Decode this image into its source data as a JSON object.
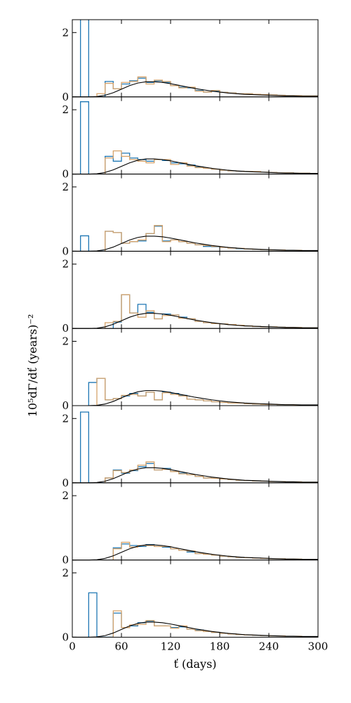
{
  "figure": {
    "ylabel": "10⁵dΓ/dť (years)⁻²",
    "xlabel": "ť (days)",
    "colors": {
      "series_a": "#1f77b4",
      "series_b": "#d6a36b",
      "model": "#000000"
    }
  },
  "chart_data": {
    "type": "line",
    "xlim": [
      0,
      300
    ],
    "ylim": [
      0,
      2.4
    ],
    "xticks": [
      0,
      60,
      120,
      180,
      240,
      300
    ],
    "yticks": [
      0,
      2
    ],
    "grid": false,
    "bin_edges": [
      10,
      20,
      30,
      40,
      50,
      60,
      70,
      80,
      90,
      100,
      110,
      120,
      130,
      140,
      150,
      160,
      170,
      180,
      190,
      200,
      210,
      220,
      230,
      240,
      250,
      260,
      270,
      280,
      290,
      300
    ],
    "model_curve": {
      "x": [
        0,
        10,
        20,
        30,
        40,
        50,
        60,
        70,
        80,
        90,
        100,
        110,
        120,
        130,
        140,
        150,
        160,
        170,
        180,
        190,
        200,
        210,
        220,
        230,
        240,
        250,
        260,
        270,
        280,
        290,
        300
      ],
      "y": [
        0.0,
        0.0,
        0.0,
        0.01,
        0.05,
        0.13,
        0.24,
        0.35,
        0.43,
        0.47,
        0.47,
        0.45,
        0.41,
        0.36,
        0.31,
        0.26,
        0.22,
        0.18,
        0.15,
        0.12,
        0.1,
        0.08,
        0.07,
        0.06,
        0.05,
        0.04,
        0.03,
        0.03,
        0.02,
        0.02,
        0.02
      ]
    },
    "panels": [
      {
        "series": [
          {
            "values": [
              2.5,
              0,
              0,
              0.48,
              0.25,
              0.4,
              0.5,
              0.58,
              0.45,
              0.5,
              0.45,
              0.35,
              0.3,
              0.28,
              0.2,
              0.15,
              0.18,
              0.14,
              0.12,
              0.1,
              0.1,
              0.08,
              0.07,
              0.06,
              0.05,
              0.04,
              0.04,
              0.03,
              0.03
            ]
          },
          {
            "values": [
              0,
              0,
              0.1,
              0.42,
              0.25,
              0.45,
              0.48,
              0.62,
              0.4,
              0.52,
              0.48,
              0.35,
              0.28,
              0.3,
              0.18,
              0.15,
              0.2,
              0.14,
              0.12,
              0.1,
              0.1,
              0.08,
              0.07,
              0.06,
              0.05,
              0.04,
              0.04,
              0.03,
              0.03
            ]
          }
        ]
      },
      {
        "series": [
          {
            "values": [
              2.25,
              0,
              0,
              0.55,
              0.4,
              0.65,
              0.5,
              0.45,
              0.4,
              0.45,
              0.42,
              0.35,
              0.32,
              0.28,
              0.22,
              0.18,
              0.15,
              0.12,
              0.1,
              0.09,
              0.08,
              0.07,
              0.06,
              0.05,
              0.04,
              0.04,
              0.03,
              0.03,
              0.02
            ]
          },
          {
            "values": [
              0,
              0,
              0,
              0.5,
              0.72,
              0.55,
              0.45,
              0.4,
              0.35,
              0.45,
              0.45,
              0.3,
              0.35,
              0.25,
              0.2,
              0.18,
              0.15,
              0.12,
              0.1,
              0.09,
              0.08,
              0.08,
              0.06,
              0.05,
              0.04,
              0.04,
              0.03,
              0.03,
              0.02
            ]
          }
        ]
      },
      {
        "series": [
          {
            "values": [
              0.48,
              0,
              0,
              0.62,
              0.58,
              0.25,
              0.3,
              0.32,
              0.55,
              0.78,
              0.32,
              0.35,
              0.3,
              0.25,
              0.2,
              0.15,
              0.14,
              0.12,
              0.1,
              0.08,
              0.07,
              0.06,
              0.05,
              0.04,
              0.04,
              0.03,
              0.03,
              0.02,
              0.02
            ]
          },
          {
            "values": [
              0,
              0,
              0,
              0.62,
              0.58,
              0.25,
              0.3,
              0.35,
              0.55,
              0.8,
              0.3,
              0.35,
              0.3,
              0.25,
              0.2,
              0.18,
              0.15,
              0.12,
              0.1,
              0.09,
              0.07,
              0.06,
              0.05,
              0.04,
              0.04,
              0.03,
              0.03,
              0.02,
              0.02
            ]
          }
        ]
      },
      {
        "series": [
          {
            "values": [
              0,
              0,
              0,
              0,
              0.2,
              1.05,
              0.48,
              0.75,
              0.5,
              0.3,
              0.45,
              0.42,
              0.35,
              0.3,
              0.22,
              0.18,
              0.15,
              0.14,
              0.12,
              0.1,
              0.08,
              0.06,
              0.05,
              0.05,
              0.04,
              0.03,
              0.03,
              0.02,
              0.02
            ]
          },
          {
            "values": [
              0,
              0,
              0,
              0.18,
              0.22,
              1.05,
              0.48,
              0.35,
              0.55,
              0.3,
              0.4,
              0.42,
              0.32,
              0.3,
              0.22,
              0.18,
              0.15,
              0.14,
              0.12,
              0.1,
              0.08,
              0.06,
              0.05,
              0.05,
              0.04,
              0.03,
              0.03,
              0.02,
              0.02
            ]
          }
        ]
      },
      {
        "series": [
          {
            "values": [
              0,
              0.72,
              0.85,
              0.18,
              0.22,
              0.3,
              0.38,
              0.3,
              0.42,
              0.18,
              0.42,
              0.38,
              0.32,
              0.2,
              0.18,
              0.15,
              0.12,
              0.1,
              0.08,
              0.08,
              0.06,
              0.05,
              0.04,
              0.04,
              0.03,
              0.03,
              0.02,
              0.02,
              0.02
            ]
          },
          {
            "values": [
              0,
              0,
              0.85,
              0.18,
              0.22,
              0.32,
              0.35,
              0.3,
              0.42,
              0.18,
              0.4,
              0.35,
              0.3,
              0.2,
              0.18,
              0.15,
              0.12,
              0.1,
              0.08,
              0.08,
              0.06,
              0.05,
              0.04,
              0.04,
              0.03,
              0.03,
              0.02,
              0.02,
              0.02
            ]
          }
        ]
      },
      {
        "series": [
          {
            "values": [
              2.2,
              0,
              0,
              0.15,
              0.4,
              0.3,
              0.38,
              0.5,
              0.6,
              0.4,
              0.45,
              0.35,
              0.3,
              0.25,
              0.2,
              0.15,
              0.14,
              0.12,
              0.1,
              0.08,
              0.07,
              0.06,
              0.05,
              0.04,
              0.04,
              0.03,
              0.03,
              0.02,
              0.02
            ]
          },
          {
            "values": [
              0,
              0,
              0,
              0.15,
              0.38,
              0.32,
              0.4,
              0.55,
              0.65,
              0.4,
              0.42,
              0.35,
              0.28,
              0.25,
              0.2,
              0.15,
              0.14,
              0.12,
              0.1,
              0.08,
              0.07,
              0.06,
              0.05,
              0.04,
              0.04,
              0.03,
              0.03,
              0.02,
              0.02
            ]
          }
        ]
      },
      {
        "series": [
          {
            "values": [
              0,
              0,
              0,
              0,
              0.38,
              0.5,
              0.45,
              0.42,
              0.48,
              0.42,
              0.4,
              0.35,
              0.3,
              0.25,
              0.2,
              0.18,
              0.15,
              0.12,
              0.1,
              0.08,
              0.07,
              0.06,
              0.05,
              0.04,
              0.04,
              0.03,
              0.03,
              0.02,
              0.02
            ]
          },
          {
            "values": [
              0,
              0,
              0,
              0,
              0.35,
              0.55,
              0.4,
              0.45,
              0.45,
              0.42,
              0.42,
              0.35,
              0.3,
              0.28,
              0.2,
              0.18,
              0.15,
              0.12,
              0.1,
              0.08,
              0.07,
              0.06,
              0.05,
              0.04,
              0.04,
              0.03,
              0.03,
              0.02,
              0.02
            ]
          }
        ]
      },
      {
        "series": [
          {
            "values": [
              0,
              1.38,
              0,
              0,
              0.75,
              0.3,
              0.35,
              0.45,
              0.5,
              0.35,
              0.35,
              0.3,
              0.32,
              0.25,
              0.22,
              0.18,
              0.15,
              0.12,
              0.1,
              0.08,
              0.07,
              0.06,
              0.05,
              0.04,
              0.04,
              0.03,
              0.03,
              0.02,
              0.02
            ]
          },
          {
            "values": [
              0,
              0,
              0,
              0,
              0.82,
              0.3,
              0.38,
              0.4,
              0.52,
              0.35,
              0.35,
              0.28,
              0.35,
              0.25,
              0.2,
              0.18,
              0.15,
              0.12,
              0.1,
              0.08,
              0.07,
              0.06,
              0.05,
              0.04,
              0.04,
              0.03,
              0.03,
              0.02,
              0.02
            ]
          }
        ]
      }
    ]
  }
}
